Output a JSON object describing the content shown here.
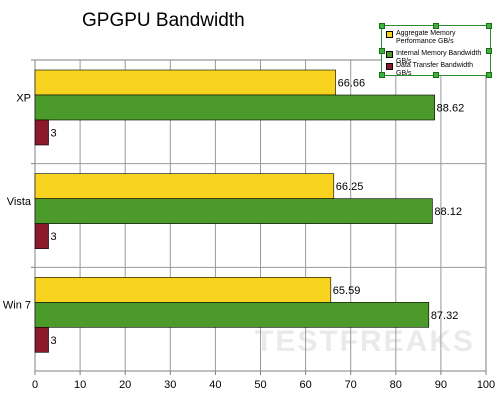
{
  "chart_data": {
    "type": "bar",
    "orientation": "horizontal",
    "title": "GPGPU Bandwidth",
    "categories": [
      "XP",
      "Vista",
      "Win 7"
    ],
    "series": [
      {
        "name": "Aggregate Memory Performance GB/s",
        "color": "#f7d21f",
        "values": [
          66.66,
          66.25,
          65.59
        ],
        "labels": [
          "66.66",
          "66.25",
          "65.59"
        ]
      },
      {
        "name": "Internal Memory Bandwidth GB/s",
        "color": "#4c9a2a",
        "values": [
          88.62,
          88.12,
          87.32
        ],
        "labels": [
          "88.62",
          "88.12",
          "87.32"
        ]
      },
      {
        "name": "Data Transfer Bandwidth GB/s",
        "color": "#8b1a2b",
        "values": [
          3,
          3,
          3
        ],
        "labels": [
          "3",
          "3",
          "3"
        ]
      }
    ],
    "xlim": [
      0,
      100
    ],
    "xticks": [
      "0",
      "10",
      "20",
      "30",
      "40",
      "50",
      "60",
      "70",
      "80",
      "90",
      "100"
    ],
    "grid": true,
    "legend_position": "top-right"
  },
  "watermark": "TESTFREAKS"
}
